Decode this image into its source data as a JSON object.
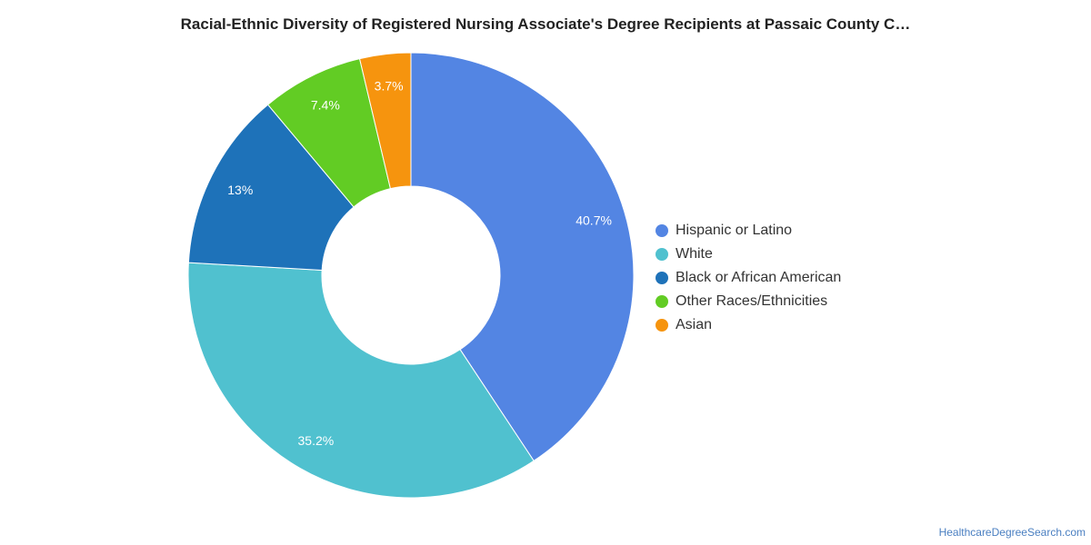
{
  "chart_data": {
    "type": "pie",
    "variant": "donut",
    "title": "Racial-Ethnic Diversity of Registered Nursing Associate's Degree Recipients at Passaic County C…",
    "categories": [
      "Hispanic or Latino",
      "White",
      "Black or African American",
      "Other Races/Ethnicities",
      "Asian"
    ],
    "values": [
      40.7,
      35.2,
      13,
      7.4,
      3.7
    ],
    "labels": [
      "40.7%",
      "35.2%",
      "13%",
      "7.4%",
      "3.7%"
    ],
    "colors": [
      "#5385e3",
      "#50c1cf",
      "#1e72b9",
      "#62cc24",
      "#f6940e"
    ],
    "legend_position": "right",
    "start": "top, clockwise"
  },
  "source": {
    "text": "HealthcareDegreeSearch.com",
    "color": "#4a7fc1"
  }
}
